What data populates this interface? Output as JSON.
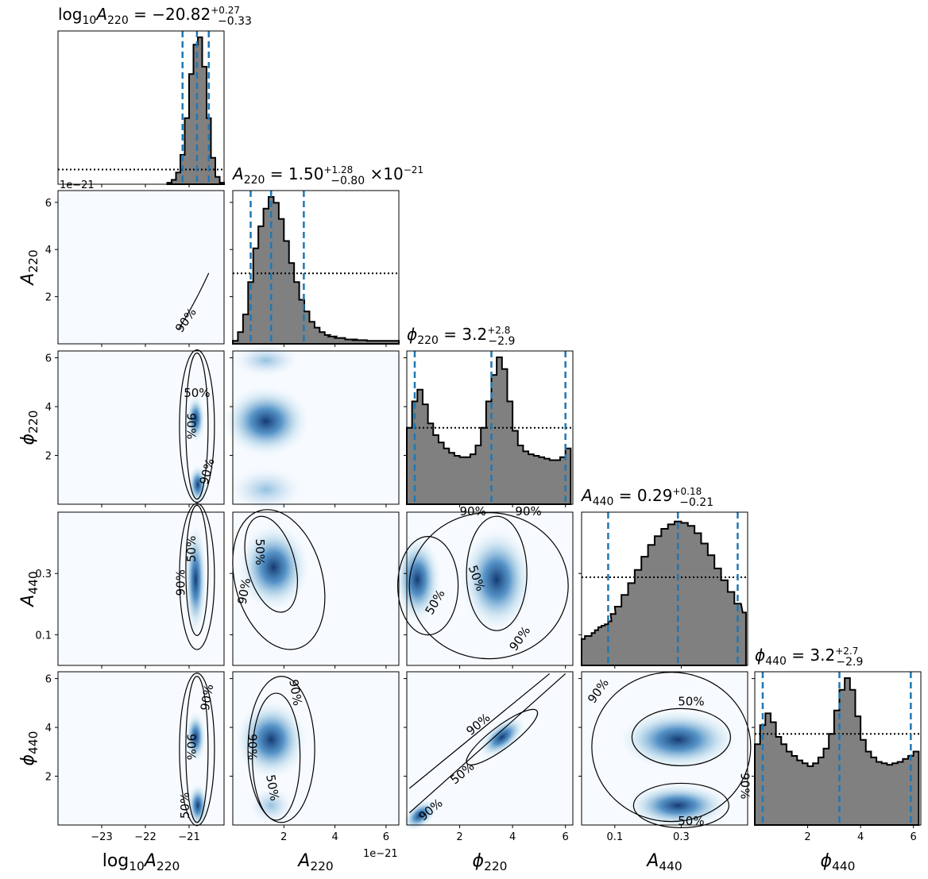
{
  "chart_data": {
    "type": "corner",
    "parameters": [
      {
        "key": "log10A220",
        "label_main": "log",
        "label_sub": "10",
        "label_var": "A",
        "label_varsub": "220",
        "range": [
          -24,
          -20.2
        ]
      },
      {
        "key": "A220",
        "label_var": "A",
        "label_varsub": "220",
        "range": [
          0,
          6.5
        ],
        "offset_text": "1e−21"
      },
      {
        "key": "phi220",
        "label_var": "ϕ",
        "label_varsub": "220",
        "range": [
          0,
          6.28
        ]
      },
      {
        "key": "A440",
        "label_var": "A",
        "label_varsub": "440",
        "range": [
          0,
          0.5
        ]
      },
      {
        "key": "phi440",
        "label_var": "ϕ",
        "label_varsub": "440",
        "range": [
          0,
          6.28
        ]
      }
    ],
    "titles": [
      {
        "var": "log",
        "sub": "10",
        "var2": "A",
        "sub2": "220",
        "eq": " = −20.82",
        "plus": "+0.27",
        "minus": "−0.33",
        "suffix": ""
      },
      {
        "var": "A",
        "sub": "220",
        "eq": " = 1.50",
        "plus": "+1.28",
        "minus": "−0.80",
        "suffix": "×10",
        "suffix_exp": "−21"
      },
      {
        "var": "ϕ",
        "sub": "220",
        "eq": " = 3.2",
        "plus": "+2.8",
        "minus": "−2.9",
        "suffix": ""
      },
      {
        "var": "A",
        "sub": "440",
        "eq": " = 0.29",
        "plus": "+0.18",
        "minus": "−0.21",
        "suffix": ""
      },
      {
        "var": "ϕ",
        "sub": "440",
        "eq": " = 3.2",
        "plus": "+2.7",
        "minus": "−2.9",
        "suffix": ""
      }
    ],
    "x_ticks": [
      {
        "values": [
          -23,
          -22,
          -21
        ],
        "labels": [
          "−23",
          "−22",
          "−21"
        ]
      },
      {
        "values": [
          2,
          4,
          6
        ],
        "labels": [
          "2",
          "4",
          "6"
        ]
      },
      {
        "values": [
          2,
          4,
          6
        ],
        "labels": [
          "2",
          "4",
          "6"
        ]
      },
      {
        "values": [
          0.1,
          0.3
        ],
        "labels": [
          "0.1",
          "0.3"
        ]
      },
      {
        "values": [
          2,
          4,
          6
        ],
        "labels": [
          "2",
          "4",
          "6"
        ]
      }
    ],
    "y_ticks": [
      null,
      {
        "values": [
          2,
          4,
          6
        ],
        "labels": [
          "2",
          "4",
          "6"
        ]
      },
      {
        "values": [
          2,
          4,
          6
        ],
        "labels": [
          "2",
          "4",
          "6"
        ]
      },
      {
        "values": [
          0.1,
          0.3
        ],
        "labels": [
          "0.1",
          "0.3"
        ]
      },
      {
        "values": [
          2,
          4,
          6
        ],
        "labels": [
          "2",
          "4",
          "6"
        ]
      }
    ],
    "quantile_lines": [
      [
        -21.15,
        -20.82,
        -20.55
      ],
      [
        0.7,
        1.5,
        2.78
      ],
      [
        0.3,
        3.2,
        6.0
      ],
      [
        0.08,
        0.29,
        0.47
      ],
      [
        0.3,
        3.2,
        5.9
      ]
    ],
    "histograms": [
      {
        "centers": [
          -21.45,
          -21.35,
          -21.25,
          -21.15,
          -21.05,
          -20.95,
          -20.85,
          -20.75,
          -20.65,
          -20.55,
          -20.45,
          -20.35,
          -20.25
        ],
        "values": [
          0.01,
          0.03,
          0.08,
          0.2,
          0.45,
          0.75,
          0.95,
          1.0,
          0.8,
          0.45,
          0.18,
          0.05,
          0.01
        ],
        "prior": 0.1
      },
      {
        "centers": [
          0.1,
          0.3,
          0.5,
          0.7,
          0.9,
          1.1,
          1.3,
          1.5,
          1.7,
          1.9,
          2.1,
          2.3,
          2.5,
          2.7,
          2.9,
          3.1,
          3.3,
          3.5,
          3.7,
          3.9,
          4.2,
          4.6,
          5.0,
          5.5,
          6.0,
          6.4
        ],
        "values": [
          0.02,
          0.08,
          0.2,
          0.42,
          0.65,
          0.8,
          0.92,
          1.0,
          0.96,
          0.85,
          0.7,
          0.55,
          0.42,
          0.3,
          0.22,
          0.15,
          0.11,
          0.08,
          0.06,
          0.05,
          0.04,
          0.03,
          0.025,
          0.02,
          0.02,
          0.02
        ],
        "prior": 0.48
      },
      {
        "centers": [
          0.1,
          0.3,
          0.5,
          0.7,
          0.9,
          1.1,
          1.3,
          1.5,
          1.7,
          1.9,
          2.1,
          2.3,
          2.5,
          2.7,
          2.9,
          3.1,
          3.3,
          3.5,
          3.7,
          3.9,
          4.1,
          4.3,
          4.5,
          4.7,
          4.9,
          5.1,
          5.3,
          5.5,
          5.7,
          5.9,
          6.1
        ],
        "values": [
          0.52,
          0.7,
          0.78,
          0.68,
          0.55,
          0.47,
          0.42,
          0.38,
          0.35,
          0.33,
          0.32,
          0.32,
          0.34,
          0.4,
          0.52,
          0.7,
          0.88,
          1.0,
          0.92,
          0.7,
          0.5,
          0.4,
          0.36,
          0.34,
          0.33,
          0.32,
          0.31,
          0.3,
          0.3,
          0.32,
          0.38
        ],
        "prior": 0.52
      },
      {
        "centers": [
          0.005,
          0.015,
          0.025,
          0.035,
          0.045,
          0.055,
          0.065,
          0.075,
          0.085,
          0.095,
          0.11,
          0.13,
          0.15,
          0.17,
          0.19,
          0.21,
          0.23,
          0.25,
          0.27,
          0.29,
          0.31,
          0.33,
          0.35,
          0.37,
          0.39,
          0.41,
          0.43,
          0.45,
          0.47,
          0.49
        ],
        "values": [
          0.18,
          0.2,
          0.2,
          0.22,
          0.24,
          0.26,
          0.27,
          0.28,
          0.3,
          0.35,
          0.4,
          0.48,
          0.56,
          0.65,
          0.74,
          0.82,
          0.88,
          0.93,
          0.96,
          0.98,
          0.97,
          0.95,
          0.9,
          0.83,
          0.75,
          0.66,
          0.58,
          0.5,
          0.42,
          0.36
        ],
        "prior": 0.6
      },
      {
        "centers": [
          0.1,
          0.3,
          0.5,
          0.7,
          0.9,
          1.1,
          1.3,
          1.5,
          1.7,
          1.9,
          2.1,
          2.3,
          2.5,
          2.7,
          2.9,
          3.1,
          3.3,
          3.5,
          3.7,
          3.9,
          4.1,
          4.3,
          4.5,
          4.7,
          4.9,
          5.1,
          5.3,
          5.5,
          5.7,
          5.9,
          6.1
        ],
        "values": [
          0.55,
          0.68,
          0.76,
          0.7,
          0.6,
          0.55,
          0.5,
          0.47,
          0.44,
          0.42,
          0.4,
          0.42,
          0.46,
          0.52,
          0.62,
          0.78,
          0.92,
          1.0,
          0.92,
          0.74,
          0.58,
          0.5,
          0.46,
          0.43,
          0.42,
          0.41,
          0.42,
          0.43,
          0.45,
          0.47,
          0.5
        ],
        "prior": 0.62
      }
    ],
    "contour_labels": [
      "50%",
      "90%"
    ],
    "density_color": "#08519c"
  }
}
